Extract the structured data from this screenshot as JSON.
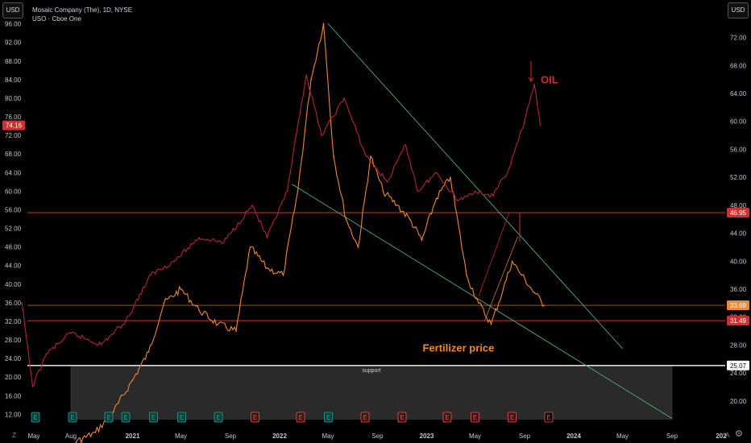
{
  "header": {
    "title_line": "Mosaic Company (The), 1D, NYSE",
    "subtitle_line": "USO · Cboe One",
    "currency_left": "USD",
    "currency_right": "USD"
  },
  "bottom_bar": {
    "left_icon": "Z",
    "right_icon": "A",
    "settings_icon": "gear-icon"
  },
  "colors": {
    "background": "#000000",
    "mos_line": "#f0882e",
    "uso_line": "#b5243a",
    "red_levels": "#d32f2f",
    "white_level": "#ffffff",
    "trend_lines": "#4caf84",
    "support_box": "#2a2a2a",
    "earnings_green": "#26a69a",
    "earnings_red": "#ef5350"
  },
  "chart_data": {
    "type": "line",
    "title": "Mosaic Company (The), 1D, NYSE",
    "left_axis": {
      "ticks": [
        12.0,
        16.0,
        20.0,
        24.0,
        28.0,
        32.0,
        36.0,
        40.0,
        44.0,
        48.0,
        52.0,
        56.0,
        60.0,
        64.0,
        68.0,
        72.0,
        76.0,
        80.0,
        84.0,
        88.0,
        92.0,
        96.0
      ],
      "labels": [
        "12.00",
        "16.00",
        "20.00",
        "24.00",
        "28.00",
        "32.00",
        "36.00",
        "40.00",
        "44.00",
        "48.00",
        "52.00",
        "56.00",
        "60.00",
        "64.00",
        "68.00",
        "72.00",
        "76.00",
        "80.00",
        "84.00",
        "88.00",
        "92.00",
        "96.00"
      ]
    },
    "right_axis": {
      "ticks": [
        20.0,
        24.0,
        28.0,
        32.0,
        36.0,
        40.0,
        44.0,
        48.0,
        52.0,
        56.0,
        60.0,
        64.0,
        68.0,
        72.0
      ],
      "labels": [
        "20.00",
        "24.00",
        "28.00",
        "32.00",
        "36.00",
        "40.00",
        "44.00",
        "48.00",
        "52.00",
        "56.00",
        "60.00",
        "64.00",
        "68.00",
        "72.00"
      ]
    },
    "x_axis": {
      "labels": [
        "May",
        "Aug",
        "2021",
        "May",
        "Sep",
        "2022",
        "May",
        "Sep",
        "2023",
        "May",
        "Sep",
        "2024",
        "May",
        "Sep",
        "202"
      ],
      "dates": [
        "2020-05-01",
        "2020-08-01",
        "2021-01-01",
        "2021-05-01",
        "2021-09-01",
        "2022-01-01",
        "2022-05-01",
        "2022-09-01",
        "2023-01-01",
        "2023-05-01",
        "2023-09-01",
        "2024-01-01",
        "2024-05-01",
        "2024-09-01",
        "2025-01-01"
      ]
    },
    "series": [
      {
        "name": "Mosaic Company (The)",
        "axis": "right",
        "dates": [
          "2020-04-01",
          "2020-05-15",
          "2020-07-01",
          "2020-08-15",
          "2020-10-01",
          "2020-11-15",
          "2021-01-01",
          "2021-02-10",
          "2021-03-20",
          "2021-05-01",
          "2021-06-15",
          "2021-08-01",
          "2021-09-15",
          "2021-10-20",
          "2021-12-01",
          "2022-01-10",
          "2022-02-15",
          "2022-03-20",
          "2022-04-20",
          "2022-05-15",
          "2022-06-15",
          "2022-07-15",
          "2022-08-15",
          "2022-09-15",
          "2022-10-20",
          "2022-11-20",
          "2022-12-20",
          "2023-01-25",
          "2023-03-01",
          "2023-04-10",
          "2023-05-10",
          "2023-06-10",
          "2023-07-10",
          "2023-08-01",
          "2023-08-25",
          "2023-09-25",
          "2023-10-20"
        ],
        "values": [
          11.8,
          11.5,
          12.3,
          14.2,
          15.5,
          18.5,
          23.0,
          27.0,
          34.0,
          36.0,
          33.0,
          31.0,
          30.0,
          42.0,
          39.0,
          38.0,
          50.0,
          66.0,
          74.0,
          55.0,
          46.0,
          42.0,
          55.0,
          50.0,
          48.0,
          46.0,
          43.0,
          49.0,
          52.0,
          38.0,
          34.0,
          31.0,
          36.0,
          40.0,
          38.0,
          35.5,
          33.69
        ]
      },
      {
        "name": "USO",
        "axis": "left",
        "dates": [
          "2020-04-01",
          "2020-04-28",
          "2020-06-01",
          "2020-08-01",
          "2020-10-15",
          "2020-12-15",
          "2021-02-15",
          "2021-04-15",
          "2021-06-15",
          "2021-08-15",
          "2021-10-25",
          "2021-12-01",
          "2022-01-20",
          "2022-03-08",
          "2022-04-15",
          "2022-06-10",
          "2022-08-01",
          "2022-09-25",
          "2022-11-10",
          "2022-12-10",
          "2023-01-25",
          "2023-03-20",
          "2023-05-01",
          "2023-06-15",
          "2023-07-25",
          "2023-09-01",
          "2023-09-25",
          "2023-10-10"
        ],
        "values": [
          36.0,
          18.0,
          25.0,
          29.5,
          27.0,
          32.0,
          42.0,
          45.0,
          50.0,
          49.0,
          57.0,
          50.0,
          60.0,
          85.0,
          72.0,
          80.0,
          68.0,
          62.0,
          70.0,
          60.0,
          64.0,
          58.0,
          60.0,
          59.0,
          65.0,
          75.0,
          83.0,
          74.16
        ]
      }
    ],
    "levels": [
      {
        "label": "46.95",
        "value": 46.95,
        "axis": "right",
        "color": "#d32f2f"
      },
      {
        "label": "31.49",
        "value": 31.49,
        "axis": "right",
        "color": "#d32f2f"
      },
      {
        "label": "25.07",
        "value": 25.07,
        "axis": "right",
        "color": "#ffffff"
      },
      {
        "label": "33.69",
        "value": 33.69,
        "axis": "right",
        "color": "#f0882e"
      },
      {
        "label": "74.16",
        "value": 74.16,
        "axis": "left",
        "color": "#d32f2f"
      }
    ],
    "trendlines": [
      {
        "from": [
          "2022-05-01",
          74.0
        ],
        "to": [
          "2024-05-01",
          27.5
        ]
      },
      {
        "from": [
          "2022-02-01",
          51.0
        ],
        "to": [
          "2024-09-01",
          17.5
        ]
      }
    ],
    "support_zone": {
      "label": "support",
      "from": [
        "2020-08-01",
        25.07
      ],
      "to": [
        "2024-09-01",
        17.4
      ]
    },
    "annotations": [
      {
        "text": "OIL",
        "at": [
          "2023-09-25",
          68.0
        ],
        "color": "#d32f2f"
      },
      {
        "text": "Fertilizer price",
        "at": [
          "2023-05-01",
          28.0
        ],
        "color": "#f0882e"
      }
    ],
    "earnings": [
      {
        "date": "2020-05-05",
        "kind": "green",
        "label": "E"
      },
      {
        "date": "2020-08-05",
        "kind": "green",
        "label": "E"
      },
      {
        "date": "2020-11-03",
        "kind": "green",
        "label": "E"
      },
      {
        "date": "2020-12-15",
        "kind": "green",
        "label": "E"
      },
      {
        "date": "2021-02-22",
        "kind": "green",
        "label": "E"
      },
      {
        "date": "2021-05-03",
        "kind": "green",
        "label": "E"
      },
      {
        "date": "2021-08-02",
        "kind": "green",
        "label": "E"
      },
      {
        "date": "2021-11-01",
        "kind": "red",
        "label": "E"
      },
      {
        "date": "2022-02-22",
        "kind": "red",
        "label": "E"
      },
      {
        "date": "2022-05-02",
        "kind": "green",
        "label": "E"
      },
      {
        "date": "2022-08-01",
        "kind": "red",
        "label": "E"
      },
      {
        "date": "2022-11-01",
        "kind": "red",
        "label": "E"
      },
      {
        "date": "2023-02-21",
        "kind": "red",
        "label": "E"
      },
      {
        "date": "2023-05-01",
        "kind": "red",
        "label": "E"
      },
      {
        "date": "2023-08-01",
        "kind": "red",
        "label": "E"
      },
      {
        "date": "2023-10-31",
        "kind": "red-outline",
        "label": "E"
      }
    ]
  }
}
